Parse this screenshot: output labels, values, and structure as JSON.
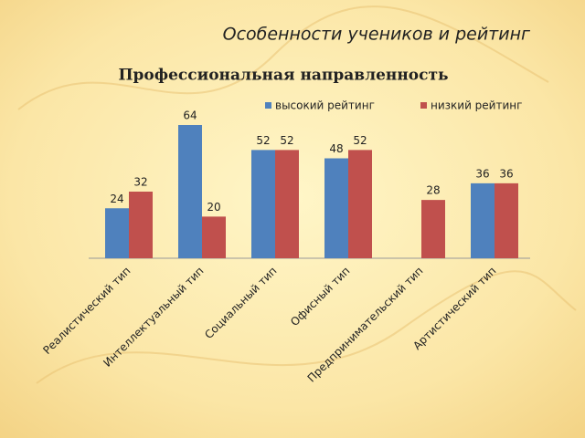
{
  "slide_title": "Особенности учеников и рейтинг",
  "chart_data": {
    "type": "bar",
    "title": "Профессиональная направленность",
    "categories": [
      "Реалистический тип",
      "Интеллектуальный тип",
      "Социальный тип",
      "Офисный тип",
      "Предпринимательский тип",
      "Артистический тип"
    ],
    "series": [
      {
        "name": "высокий рейтинг",
        "color": "#4f81bd",
        "values": [
          24,
          64,
          52,
          48,
          null,
          36
        ]
      },
      {
        "name": "низкий рейтинг",
        "color": "#c0504d",
        "values": [
          32,
          20,
          52,
          52,
          28,
          36
        ]
      }
    ],
    "legend": "top"
  }
}
